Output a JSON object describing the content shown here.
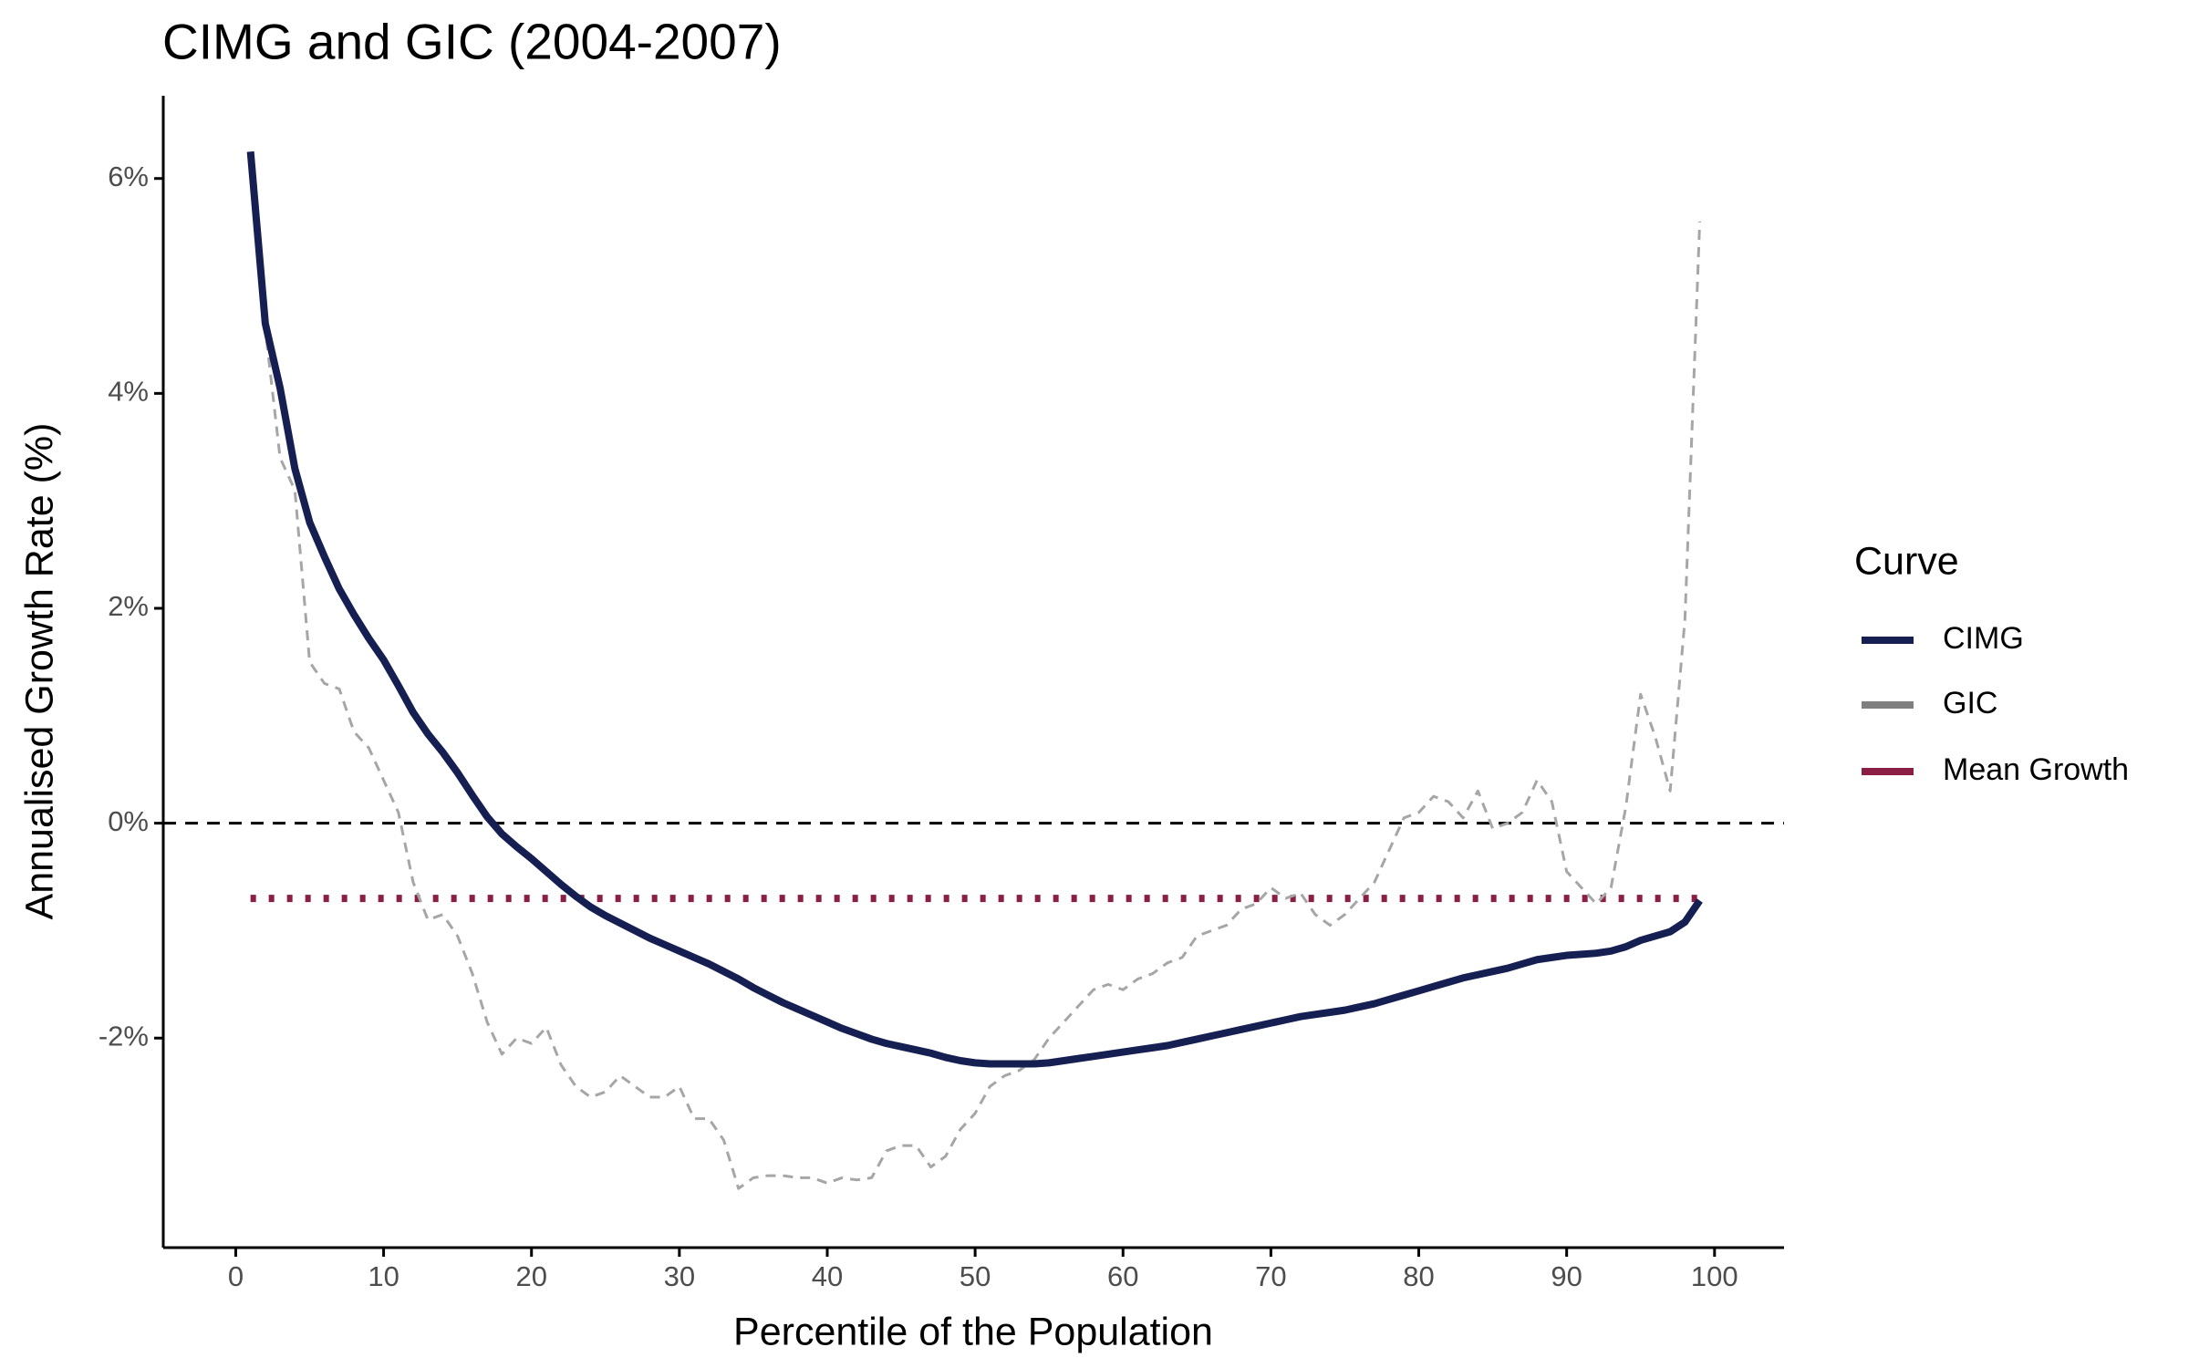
{
  "chart_data": {
    "type": "line",
    "title": "CIMG and GIC (2004-2007)",
    "x_label": "Percentile of the Population",
    "y_label": "Annualised Growth Rate (%)",
    "legend_title": "Curve",
    "legend_position": "right",
    "x": [
      1,
      2,
      3,
      4,
      5,
      6,
      7,
      8,
      9,
      10,
      11,
      12,
      13,
      14,
      15,
      16,
      17,
      18,
      19,
      20,
      21,
      22,
      23,
      24,
      25,
      26,
      27,
      28,
      29,
      30,
      31,
      32,
      33,
      34,
      35,
      36,
      37,
      38,
      39,
      40,
      41,
      42,
      43,
      44,
      45,
      46,
      47,
      48,
      49,
      50,
      51,
      52,
      53,
      54,
      55,
      56,
      57,
      58,
      59,
      60,
      61,
      62,
      63,
      64,
      65,
      66,
      67,
      68,
      69,
      70,
      71,
      72,
      73,
      74,
      75,
      76,
      77,
      78,
      79,
      80,
      81,
      82,
      83,
      84,
      85,
      86,
      87,
      88,
      89,
      90,
      91,
      92,
      93,
      94,
      95,
      96,
      97,
      98,
      99
    ],
    "series": [
      {
        "name": "CIMG",
        "color": "#161f52",
        "dash": "solid",
        "values": [
          6.25,
          4.65,
          4.05,
          3.3,
          2.8,
          2.48,
          2.18,
          1.94,
          1.72,
          1.52,
          1.28,
          1.03,
          0.83,
          0.66,
          0.47,
          0.26,
          0.06,
          -0.1,
          -0.22,
          -0.33,
          -0.45,
          -0.57,
          -0.68,
          -0.78,
          -0.86,
          -0.93,
          -1.0,
          -1.07,
          -1.13,
          -1.19,
          -1.25,
          -1.31,
          -1.38,
          -1.45,
          -1.53,
          -1.6,
          -1.67,
          -1.73,
          -1.79,
          -1.85,
          -1.91,
          -1.96,
          -2.01,
          -2.05,
          -2.08,
          -2.11,
          -2.14,
          -2.18,
          -2.21,
          -2.23,
          -2.24,
          -2.24,
          -2.24,
          -2.24,
          -2.23,
          -2.21,
          -2.19,
          -2.17,
          -2.15,
          -2.13,
          -2.11,
          -2.09,
          -2.07,
          -2.04,
          -2.01,
          -1.98,
          -1.95,
          -1.92,
          -1.89,
          -1.86,
          -1.83,
          -1.8,
          -1.78,
          -1.76,
          -1.74,
          -1.71,
          -1.68,
          -1.64,
          -1.6,
          -1.56,
          -1.52,
          -1.48,
          -1.44,
          -1.41,
          -1.38,
          -1.35,
          -1.31,
          -1.27,
          -1.25,
          -1.23,
          -1.22,
          -1.21,
          -1.19,
          -1.15,
          -1.09,
          -1.05,
          -1.01,
          -0.92,
          -0.72
        ]
      },
      {
        "name": "GIC",
        "color": "#a6a6a6",
        "legend_color": "#7f7f7f",
        "dash": "dashed",
        "values": [
          6.1,
          4.6,
          3.4,
          3.1,
          1.5,
          1.3,
          1.25,
          0.85,
          0.7,
          0.4,
          0.1,
          -0.55,
          -0.9,
          -0.85,
          -1.05,
          -1.4,
          -1.85,
          -2.15,
          -2.0,
          -2.05,
          -1.9,
          -2.25,
          -2.45,
          -2.55,
          -2.5,
          -2.35,
          -2.45,
          -2.55,
          -2.55,
          -2.45,
          -2.75,
          -2.75,
          -2.95,
          -3.4,
          -3.3,
          -3.28,
          -3.28,
          -3.3,
          -3.3,
          -3.35,
          -3.3,
          -3.32,
          -3.3,
          -3.05,
          -3.0,
          -3.0,
          -3.2,
          -3.1,
          -2.85,
          -2.7,
          -2.45,
          -2.35,
          -2.3,
          -2.2,
          -2.0,
          -1.85,
          -1.7,
          -1.55,
          -1.5,
          -1.55,
          -1.45,
          -1.4,
          -1.3,
          -1.25,
          -1.05,
          -1.0,
          -0.95,
          -0.8,
          -0.75,
          -0.6,
          -0.7,
          -0.65,
          -0.85,
          -0.95,
          -0.85,
          -0.7,
          -0.55,
          -0.25,
          0.05,
          0.1,
          0.25,
          0.2,
          0.05,
          0.3,
          -0.05,
          0.0,
          0.1,
          0.4,
          0.2,
          -0.45,
          -0.6,
          -0.75,
          -0.6,
          0.15,
          1.2,
          0.8,
          0.3,
          1.9,
          5.6
        ]
      },
      {
        "name": "Mean Growth",
        "color": "#8b1e45",
        "dash": "dotted",
        "x": [
          1,
          99
        ],
        "values": [
          -0.7,
          -0.7
        ]
      }
    ],
    "reference_line": 0,
    "xlim": [
      -4.9,
      104.7
    ],
    "ylim": [
      -3.95,
      6.77
    ],
    "xticks": [
      0,
      10,
      20,
      30,
      40,
      50,
      60,
      70,
      80,
      90,
      100
    ],
    "yticks": [
      {
        "value": -2,
        "label": "-2%"
      },
      {
        "value": 0,
        "label": "0%"
      },
      {
        "value": 2,
        "label": "2%"
      },
      {
        "value": 4,
        "label": "4%"
      },
      {
        "value": 6,
        "label": "6%"
      }
    ]
  }
}
